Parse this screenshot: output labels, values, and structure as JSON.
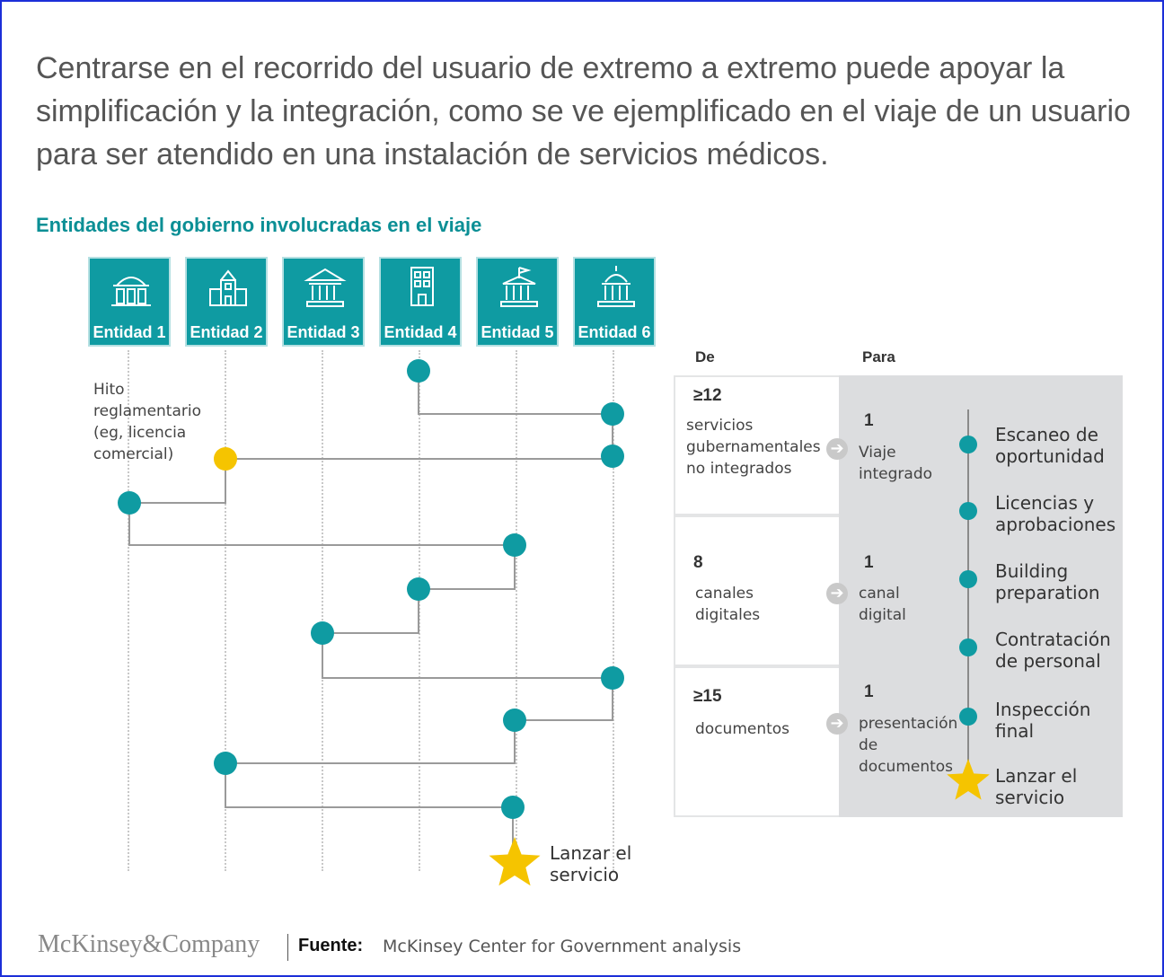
{
  "title": "Centrarse en el recorrido del usuario de extremo a extremo puede apoyar la simplificación y la integración, como se ve ejemplificado en el viaje de un usuario para ser atendido en una instalación de servicios médicos.",
  "subtitle": "Entidades del gobierno involucradas en el viaje",
  "entities": [
    {
      "label": "Entidad 1",
      "icon": "domed-building-icon"
    },
    {
      "label": "Entidad 2",
      "icon": "office-building-icon"
    },
    {
      "label": "Entidad 3",
      "icon": "courthouse-icon"
    },
    {
      "label": "Entidad 4",
      "icon": "tower-building-icon"
    },
    {
      "label": "Entidad 5",
      "icon": "flag-building-icon"
    },
    {
      "label": "Entidad 6",
      "icon": "capitol-icon"
    }
  ],
  "milestone_note": "Hito reglamentario (eg, licencia comercial)",
  "launch_left": "Lanzar el servicio",
  "comparison": {
    "de_header": "De",
    "para_header": "Para",
    "rows": [
      {
        "from_value": "≥12",
        "from_label": "servicios gubernamentales no integrados",
        "to_value": "1",
        "to_label": "Viaje integrado"
      },
      {
        "from_value": "8",
        "from_label": "canales digitales",
        "to_value": "1",
        "to_label": "canal digital"
      },
      {
        "from_value": "≥15",
        "from_label": "documentos",
        "to_value": "1",
        "to_label": "presentación de documentos"
      }
    ],
    "steps": [
      "Escaneo de oportunidad",
      "Licencias y aprobaciones",
      "Building preparation",
      "Contratación de personal",
      "Inspección final",
      "Lanzar el servicio"
    ]
  },
  "footer": {
    "logo": "McKinsey&Company",
    "source_label": "Fuente:",
    "source": "McKinsey Center for Government analysis"
  },
  "colors": {
    "teal": "#0f9ba2",
    "yellow": "#f5c400",
    "line": "#999999"
  }
}
